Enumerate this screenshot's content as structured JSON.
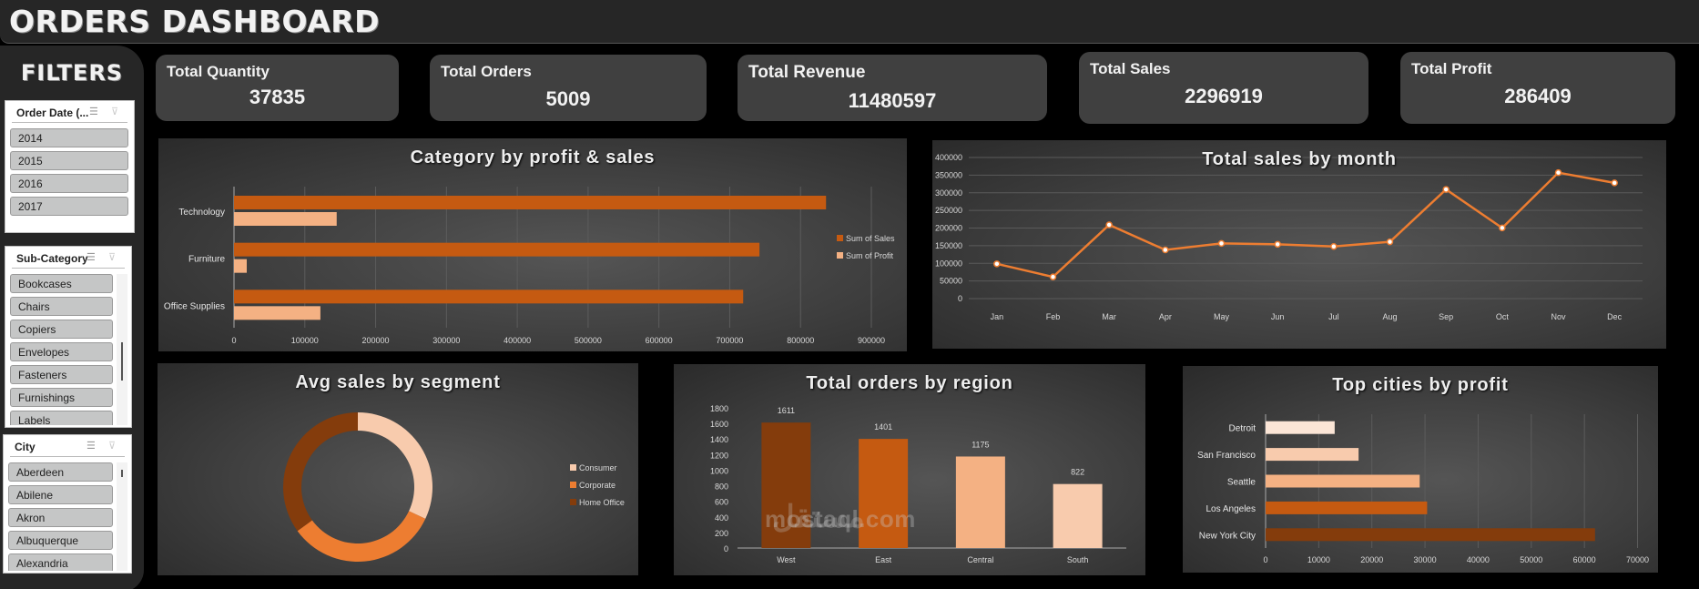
{
  "header": {
    "title": "ORDERS DASHBOARD"
  },
  "sidebar": {
    "title": "FILTERS",
    "slicers": [
      {
        "title": "Order Date (...",
        "items": [
          "2014",
          "2015",
          "2016",
          "2017"
        ],
        "scrollbar": false
      },
      {
        "title": "Sub-Category",
        "items": [
          "Bookcases",
          "Chairs",
          "Copiers",
          "Envelopes",
          "Fasteners",
          "Furnishings",
          "Labels"
        ],
        "scrollbar": true
      },
      {
        "title": "City",
        "items": [
          "Aberdeen",
          "Abilene",
          "Akron",
          "Albuquerque",
          "Alexandria"
        ],
        "scrollbar": true
      }
    ],
    "icons": {
      "multi_select": "multi-select-icon",
      "clear_filter": "clear-filter-icon"
    }
  },
  "kpis": [
    {
      "label": "Total Quantity",
      "value": "37835"
    },
    {
      "label": "Total Orders",
      "value": "5009"
    },
    {
      "label": "Total Revenue",
      "value": "11480597"
    },
    {
      "label": "Total Sales",
      "value": "2296919"
    },
    {
      "label": "Total Profit",
      "value": "286409"
    }
  ],
  "colors": {
    "dark_orange": "#843C0C",
    "orange": "#C55A11",
    "mid_orange": "#ED7D31",
    "light_orange": "#F4B183",
    "pale_orange": "#F8CBAD",
    "palest_orange": "#FBE5D6",
    "card_bg": "#404040",
    "title_bg": "#262626"
  },
  "chart_data": [
    {
      "id": "category",
      "type": "bar",
      "orientation": "horizontal",
      "title": "Category by profit & sales",
      "categories": [
        "Technology",
        "Furniture",
        "Office Supplies"
      ],
      "series": [
        {
          "name": "Sum of Sales",
          "values": [
            836000,
            742000,
            719000
          ],
          "color": "#C55A11"
        },
        {
          "name": "Sum of Profit",
          "values": [
            145000,
            18000,
            122000
          ],
          "color": "#F4B183"
        }
      ],
      "xlim": [
        0,
        900000
      ],
      "xticks": [
        "0",
        "100000",
        "200000",
        "300000",
        "400000",
        "500000",
        "600000",
        "700000",
        "800000",
        "900000"
      ],
      "grid": true,
      "legend_position": "right"
    },
    {
      "id": "monthly",
      "type": "line",
      "title": "Total sales by month",
      "categories": [
        "Jan",
        "Feb",
        "Mar",
        "Apr",
        "May",
        "Jun",
        "Jul",
        "Aug",
        "Sep",
        "Oct",
        "Nov",
        "Dec"
      ],
      "values": [
        98500,
        61500,
        209000,
        138000,
        156500,
        154000,
        147700,
        160900,
        309500,
        200400,
        357000,
        328000
      ],
      "ylim": [
        0,
        400000
      ],
      "yticks": [
        "0",
        "50000",
        "100000",
        "150000",
        "200000",
        "250000",
        "300000",
        "350000",
        "400000"
      ],
      "grid": true,
      "color": "#ED7D31"
    },
    {
      "id": "segment",
      "type": "pie",
      "variant": "donut",
      "title": "Avg sales by segment",
      "categories": [
        "Consumer",
        "Corporate",
        "Home Office"
      ],
      "values": [
        32,
        33,
        35
      ],
      "colors": [
        "#F8CBAD",
        "#ED7D31",
        "#843C0C"
      ],
      "legend_position": "right"
    },
    {
      "id": "region",
      "type": "bar",
      "orientation": "vertical",
      "title": "Total orders by region",
      "categories": [
        "West",
        "East",
        "Central",
        "South"
      ],
      "values": [
        1611,
        1401,
        1175,
        822
      ],
      "data_labels": [
        "1611",
        "1401",
        "1175",
        "822"
      ],
      "colors": [
        "#843C0C",
        "#C55A11",
        "#F4B183",
        "#F8CBAD"
      ],
      "ylim": [
        0,
        1800
      ],
      "yticks": [
        "0",
        "200",
        "400",
        "600",
        "800",
        "1000",
        "1200",
        "1400",
        "1600",
        "1800"
      ],
      "grid": false
    },
    {
      "id": "cities",
      "type": "bar",
      "orientation": "horizontal",
      "title": "Top cities by profit",
      "categories": [
        "Detroit",
        "San Francisco",
        "Seattle",
        "Los Angeles",
        "New York City"
      ],
      "values": [
        13000,
        17500,
        29000,
        30400,
        62000
      ],
      "colors": [
        "#FBE5D6",
        "#F8CBAD",
        "#F4B183",
        "#C55A11",
        "#843C0C"
      ],
      "xlim": [
        0,
        70000
      ],
      "xticks": [
        "0",
        "10000",
        "20000",
        "30000",
        "40000",
        "50000",
        "60000",
        "70000"
      ],
      "grid": true
    }
  ],
  "watermark": {
    "arabic": "مستقل",
    "latin": "mostaql.com"
  }
}
